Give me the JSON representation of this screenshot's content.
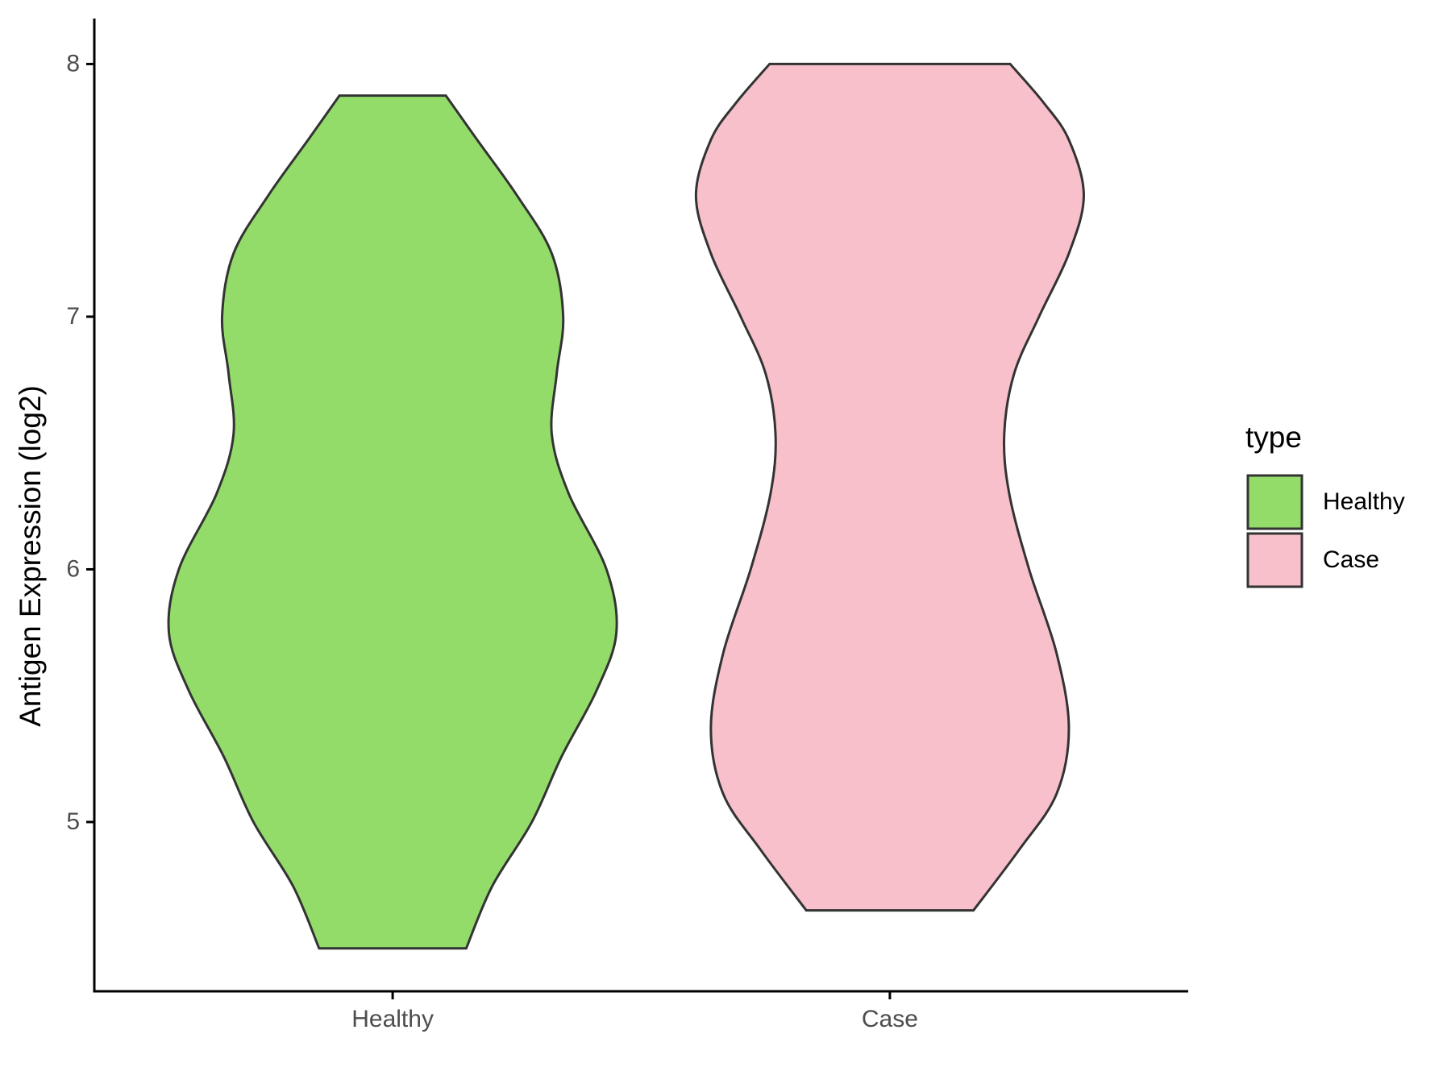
{
  "chart_data": {
    "type": "violin",
    "ylabel": "Antigen Expression (log2)",
    "categories": [
      "Healthy",
      "Case"
    ],
    "legend_title": "type",
    "legend_position": "right",
    "ylim": [
      4.33,
      8.18
    ],
    "yticks": [
      5,
      6,
      7,
      8
    ],
    "series": [
      {
        "name": "Healthy",
        "color": "#93dc6a",
        "y": [
          7.875,
          7.7,
          7.48,
          7.25,
          7.0,
          6.775,
          6.535,
          6.3,
          6.0,
          5.75,
          5.52,
          5.26,
          5.0,
          4.745,
          4.5
        ],
        "width": [
          0.107,
          0.17,
          0.25,
          0.32,
          0.343,
          0.33,
          0.32,
          0.354,
          0.43,
          0.45,
          0.41,
          0.34,
          0.28,
          0.2,
          0.148
        ]
      },
      {
        "name": "Case",
        "color": "#f7c0cb",
        "y": [
          8.0,
          7.845,
          7.7,
          7.48,
          7.25,
          7.0,
          6.775,
          6.535,
          6.3,
          6.0,
          5.67,
          5.37,
          5.11,
          4.89,
          4.65
        ],
        "width": [
          0.242,
          0.31,
          0.36,
          0.39,
          0.36,
          0.3,
          0.25,
          0.23,
          0.24,
          0.28,
          0.335,
          0.36,
          0.335,
          0.26,
          0.168
        ]
      }
    ]
  }
}
